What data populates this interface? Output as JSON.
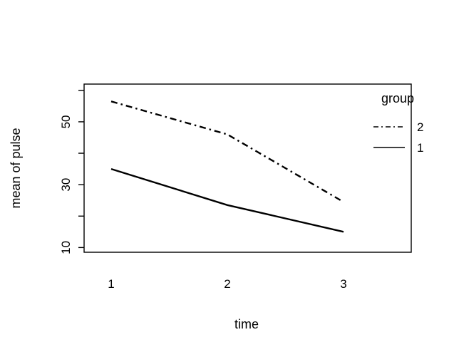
{
  "figure": {
    "background": "#ffffff",
    "foreground": "#000000"
  },
  "chart_data": {
    "type": "line",
    "title": "",
    "xlabel": "time",
    "ylabel": "mean of pulse",
    "x": [
      1,
      2,
      3
    ],
    "x_tick_labels": [
      "1",
      "2",
      "3"
    ],
    "series": [
      {
        "name": "2",
        "style": "dashdot",
        "values": [
          56.5,
          46,
          24.5
        ]
      },
      {
        "name": "1",
        "style": "solid",
        "values": [
          35,
          23.5,
          15
        ]
      }
    ],
    "y_ticks": [
      10,
      20,
      30,
      40,
      50,
      60
    ],
    "y_tick_labels": [
      "10",
      "",
      "30",
      "",
      "50",
      ""
    ],
    "ylim": [
      8.5,
      62
    ],
    "xlim_categories": [
      1,
      3
    ],
    "grid": false,
    "box": true,
    "legend": {
      "title": "group",
      "position": "top-right",
      "entries": [
        "2",
        "1"
      ]
    }
  }
}
